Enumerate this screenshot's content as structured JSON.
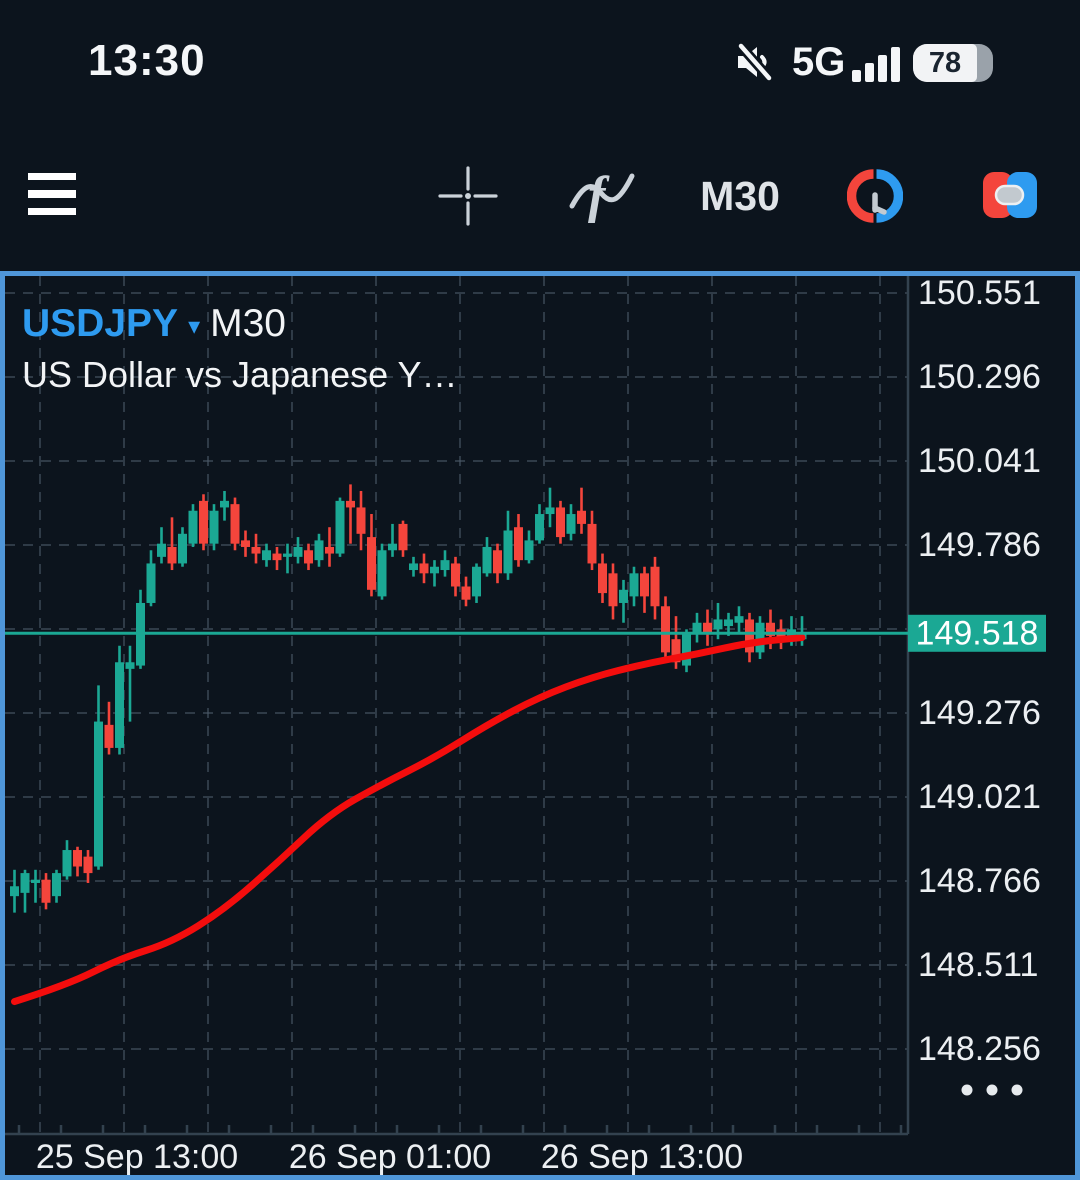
{
  "colors": {
    "bg": "#0C141D",
    "border_blue": "#4F96D9",
    "grid": "#4C5B69",
    "axis_line": "#33424F",
    "teal": "#1BA894",
    "red": "#F4453C",
    "ma_red": "#F30D0D",
    "axis_text": "#ECEFF2",
    "title_blue": "#2E9BF0",
    "icon_gray": "#CBD2D9",
    "badge_bg": "#1BA894",
    "badge_text": "#FFFFFF"
  },
  "status_bar": {
    "time": "13:30",
    "mute_icon": "volume-off-icon",
    "network": "5G",
    "signal_icon": "signal-bars-icon",
    "battery_percent": "78"
  },
  "toolbar": {
    "menu_icon": "hamburger-menu-icon",
    "crosshair_icon": "crosshair-icon",
    "indicators_icon": "function-wave-icon",
    "timeframe": "M30",
    "hours_icon": "trading-hours-clock-icon",
    "trade_icon": "one-click-trading-icon"
  },
  "chart": {
    "symbol": "USDJPY",
    "caret": "▾",
    "timeframe": "M30",
    "subtitle": "US Dollar vs Japanese Y…"
  },
  "price_axis": {
    "labels": [
      "150.551",
      "150.296",
      "150.041",
      "149.786",
      "149.276",
      "149.021",
      "148.766",
      "148.511",
      "148.256"
    ],
    "label_rows": [
      0,
      1,
      2,
      3,
      5,
      6,
      7,
      8,
      9
    ],
    "badge": "149.518",
    "more_dots": "•••"
  },
  "time_axis": {
    "labels": [
      "25 Sep 13:00",
      "26 Sep 01:00",
      "26 Sep 13:00"
    ]
  },
  "chart_data": {
    "type": "candlestick",
    "symbol": "USDJPY",
    "period": "M30",
    "current_price": 149.518,
    "axis": {
      "top_price": 150.551,
      "price_step": 0.255,
      "tick_prices": [
        150.551,
        150.296,
        150.041,
        149.786,
        149.531,
        149.276,
        149.021,
        148.766,
        148.511,
        148.256
      ],
      "time_ticks": [
        "25 Sep 13:00",
        "26 Sep 01:00",
        "26 Sep 13:00"
      ]
    },
    "candles_ohlc": [
      [
        148.72,
        148.8,
        148.67,
        148.75
      ],
      [
        148.73,
        148.8,
        148.67,
        148.79
      ],
      [
        148.76,
        148.8,
        148.7,
        148.77
      ],
      [
        148.77,
        148.79,
        148.68,
        148.7
      ],
      [
        148.72,
        148.8,
        148.7,
        148.79
      ],
      [
        148.78,
        148.89,
        148.77,
        148.86
      ],
      [
        148.86,
        148.87,
        148.78,
        148.81
      ],
      [
        148.84,
        148.86,
        148.76,
        148.79
      ],
      [
        148.81,
        149.36,
        148.8,
        149.25
      ],
      [
        149.24,
        149.31,
        149.15,
        149.17
      ],
      [
        149.17,
        149.48,
        149.15,
        149.43
      ],
      [
        149.41,
        149.48,
        149.25,
        149.43
      ],
      [
        149.42,
        149.65,
        149.41,
        149.61
      ],
      [
        149.61,
        149.77,
        149.6,
        149.73
      ],
      [
        149.75,
        149.84,
        149.73,
        149.79
      ],
      [
        149.78,
        149.87,
        149.71,
        149.73
      ],
      [
        149.73,
        149.84,
        149.72,
        149.82
      ],
      [
        149.79,
        149.91,
        149.78,
        149.89
      ],
      [
        149.92,
        149.94,
        149.77,
        149.79
      ],
      [
        149.79,
        149.91,
        149.77,
        149.89
      ],
      [
        149.9,
        149.95,
        149.86,
        149.92
      ],
      [
        149.91,
        149.93,
        149.77,
        149.79
      ],
      [
        149.8,
        149.83,
        149.75,
        149.78
      ],
      [
        149.78,
        149.82,
        149.73,
        149.76
      ],
      [
        149.74,
        149.79,
        149.72,
        149.77
      ],
      [
        149.76,
        149.78,
        149.71,
        149.74
      ],
      [
        149.75,
        149.79,
        149.7,
        149.76
      ],
      [
        149.75,
        149.81,
        149.73,
        149.78
      ],
      [
        149.77,
        149.79,
        149.71,
        149.73
      ],
      [
        149.74,
        149.82,
        149.72,
        149.8
      ],
      [
        149.78,
        149.84,
        149.72,
        149.76
      ],
      [
        149.76,
        149.93,
        149.75,
        149.92
      ],
      [
        149.92,
        149.97,
        149.79,
        149.9
      ],
      [
        149.9,
        149.95,
        149.77,
        149.82
      ],
      [
        149.81,
        149.88,
        149.63,
        149.65
      ],
      [
        149.63,
        149.79,
        149.62,
        149.77
      ],
      [
        149.77,
        149.85,
        149.75,
        149.79
      ],
      [
        149.85,
        149.86,
        149.75,
        149.77
      ],
      [
        149.71,
        149.75,
        149.69,
        149.73
      ],
      [
        149.73,
        149.76,
        149.67,
        149.7
      ],
      [
        149.7,
        149.74,
        149.66,
        149.72
      ],
      [
        149.71,
        149.77,
        149.69,
        149.74
      ],
      [
        149.73,
        149.75,
        149.63,
        149.66
      ],
      [
        149.66,
        149.69,
        149.6,
        149.62
      ],
      [
        149.63,
        149.73,
        149.61,
        149.72
      ],
      [
        149.7,
        149.81,
        149.69,
        149.78
      ],
      [
        149.77,
        149.79,
        149.67,
        149.7
      ],
      [
        149.7,
        149.89,
        149.68,
        149.83
      ],
      [
        149.84,
        149.88,
        149.72,
        149.74
      ],
      [
        149.74,
        149.83,
        149.73,
        149.8
      ],
      [
        149.8,
        149.91,
        149.79,
        149.88
      ],
      [
        149.88,
        149.96,
        149.84,
        149.9
      ],
      [
        149.9,
        149.92,
        149.79,
        149.81
      ],
      [
        149.82,
        149.91,
        149.8,
        149.88
      ],
      [
        149.89,
        149.96,
        149.82,
        149.85
      ],
      [
        149.85,
        149.89,
        149.71,
        149.73
      ],
      [
        149.73,
        149.76,
        149.61,
        149.64
      ],
      [
        149.7,
        149.73,
        149.56,
        149.6
      ],
      [
        149.61,
        149.68,
        149.55,
        149.65
      ],
      [
        149.63,
        149.72,
        149.6,
        149.7
      ],
      [
        149.7,
        149.72,
        149.58,
        149.63
      ],
      [
        149.72,
        149.75,
        149.56,
        149.6
      ],
      [
        149.6,
        149.63,
        149.44,
        149.46
      ],
      [
        149.5,
        149.57,
        149.41,
        149.43
      ],
      [
        149.42,
        149.53,
        149.4,
        149.52
      ],
      [
        149.52,
        149.58,
        149.49,
        149.55
      ],
      [
        149.55,
        149.59,
        149.48,
        149.52
      ],
      [
        149.53,
        149.61,
        149.5,
        149.56
      ],
      [
        149.54,
        149.58,
        149.51,
        149.56
      ],
      [
        149.55,
        149.6,
        149.52,
        149.57
      ],
      [
        149.56,
        149.58,
        149.43,
        149.46
      ],
      [
        149.46,
        149.57,
        149.44,
        149.55
      ],
      [
        149.55,
        149.59,
        149.47,
        149.51
      ],
      [
        149.53,
        149.56,
        149.47,
        149.5
      ],
      [
        149.5,
        149.57,
        149.48,
        149.53
      ],
      [
        149.5,
        149.57,
        149.48,
        149.52
      ]
    ],
    "ma_line": {
      "name": "moving-average",
      "color": "#F30D0D",
      "index_step": 5,
      "values": [
        148.4,
        148.45,
        148.53,
        148.58,
        148.68,
        148.82,
        148.97,
        149.06,
        149.14,
        149.24,
        149.325,
        149.385,
        149.425,
        149.455,
        149.49,
        149.505
      ]
    }
  }
}
